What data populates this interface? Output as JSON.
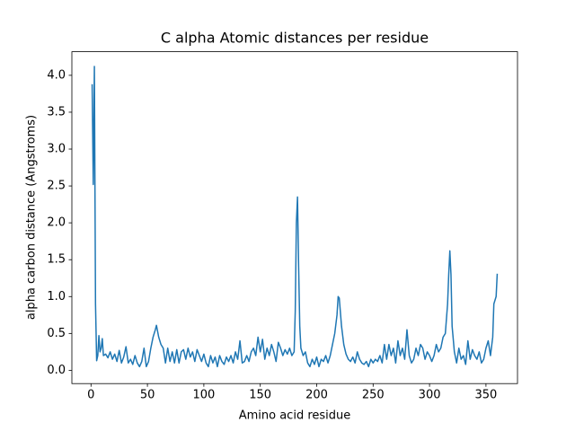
{
  "chart_data": {
    "type": "line",
    "title": "C alpha Atomic distances per residue",
    "xlabel": "Amino acid residue",
    "ylabel": "alpha carbon distance (Angstroms)",
    "color": "#1f77b4",
    "x": [
      1,
      2,
      3,
      4,
      5,
      6,
      7,
      8,
      9,
      10,
      11,
      13,
      15,
      17,
      19,
      21,
      23,
      25,
      27,
      29,
      31,
      33,
      35,
      37,
      39,
      41,
      43,
      45,
      47,
      49,
      51,
      53,
      55,
      57,
      58,
      60,
      62,
      64,
      66,
      68,
      70,
      72,
      74,
      76,
      78,
      80,
      82,
      84,
      86,
      88,
      90,
      92,
      94,
      96,
      98,
      100,
      102,
      104,
      106,
      108,
      110,
      112,
      114,
      116,
      118,
      120,
      122,
      124,
      126,
      128,
      130,
      132,
      134,
      136,
      138,
      140,
      142,
      144,
      146,
      148,
      150,
      152,
      154,
      156,
      158,
      160,
      162,
      164,
      166,
      168,
      170,
      172,
      174,
      176,
      178,
      180,
      181,
      182,
      183,
      184,
      185,
      186,
      188,
      190,
      192,
      194,
      196,
      198,
      200,
      202,
      204,
      206,
      208,
      210,
      212,
      214,
      216,
      218,
      219,
      220,
      222,
      224,
      226,
      228,
      230,
      232,
      234,
      236,
      238,
      240,
      242,
      244,
      246,
      248,
      250,
      252,
      254,
      256,
      258,
      260,
      262,
      264,
      266,
      268,
      270,
      272,
      274,
      276,
      278,
      280,
      282,
      284,
      286,
      288,
      290,
      292,
      294,
      296,
      298,
      300,
      302,
      304,
      306,
      308,
      310,
      312,
      314,
      316,
      317,
      318,
      319,
      320,
      322,
      324,
      326,
      328,
      330,
      332,
      334,
      336,
      338,
      340,
      342,
      344,
      346,
      348,
      350,
      352,
      354,
      356,
      357,
      359,
      360
    ],
    "values": [
      3.88,
      2.52,
      4.12,
      0.9,
      0.13,
      0.2,
      0.47,
      0.25,
      0.3,
      0.43,
      0.2,
      0.22,
      0.17,
      0.25,
      0.15,
      0.22,
      0.12,
      0.27,
      0.1,
      0.18,
      0.32,
      0.1,
      0.15,
      0.08,
      0.2,
      0.1,
      0.05,
      0.12,
      0.3,
      0.05,
      0.12,
      0.3,
      0.45,
      0.55,
      0.61,
      0.45,
      0.35,
      0.3,
      0.1,
      0.3,
      0.12,
      0.25,
      0.1,
      0.28,
      0.1,
      0.25,
      0.28,
      0.15,
      0.3,
      0.18,
      0.25,
      0.12,
      0.28,
      0.2,
      0.12,
      0.22,
      0.1,
      0.05,
      0.2,
      0.1,
      0.18,
      0.05,
      0.2,
      0.12,
      0.08,
      0.18,
      0.12,
      0.2,
      0.1,
      0.25,
      0.15,
      0.4,
      0.1,
      0.12,
      0.2,
      0.12,
      0.25,
      0.3,
      0.2,
      0.45,
      0.25,
      0.42,
      0.15,
      0.3,
      0.2,
      0.35,
      0.25,
      0.12,
      0.38,
      0.3,
      0.2,
      0.28,
      0.22,
      0.3,
      0.2,
      0.25,
      0.8,
      2.0,
      2.35,
      1.4,
      0.6,
      0.3,
      0.2,
      0.25,
      0.1,
      0.05,
      0.15,
      0.08,
      0.18,
      0.05,
      0.15,
      0.12,
      0.2,
      0.1,
      0.2,
      0.35,
      0.5,
      0.75,
      1.0,
      0.98,
      0.6,
      0.35,
      0.22,
      0.15,
      0.12,
      0.18,
      0.1,
      0.25,
      0.15,
      0.1,
      0.08,
      0.12,
      0.05,
      0.15,
      0.1,
      0.15,
      0.12,
      0.2,
      0.1,
      0.35,
      0.15,
      0.35,
      0.2,
      0.3,
      0.1,
      0.4,
      0.2,
      0.3,
      0.15,
      0.55,
      0.2,
      0.1,
      0.15,
      0.3,
      0.2,
      0.35,
      0.3,
      0.15,
      0.25,
      0.2,
      0.12,
      0.2,
      0.35,
      0.25,
      0.3,
      0.45,
      0.5,
      0.9,
      1.3,
      1.62,
      1.3,
      0.6,
      0.25,
      0.1,
      0.3,
      0.15,
      0.2,
      0.08,
      0.4,
      0.15,
      0.28,
      0.2,
      0.15,
      0.25,
      0.1,
      0.15,
      0.3,
      0.4,
      0.2,
      0.45,
      0.9,
      1.0,
      1.31
    ],
    "xlim": [
      -16.95,
      377.95
    ],
    "ylim": [
      -0.18,
      4.32
    ],
    "xticks": [
      0,
      50,
      100,
      150,
      200,
      250,
      300,
      350
    ],
    "yticks": [
      {
        "value": 0,
        "label": "0.0"
      },
      0.5,
      {
        "value": 1,
        "label": "1.0"
      },
      1.5,
      {
        "value": 2,
        "label": "2.0"
      },
      2.5,
      {
        "value": 3,
        "label": "3.0"
      },
      3.5,
      {
        "value": 4,
        "label": "4.0"
      }
    ]
  }
}
